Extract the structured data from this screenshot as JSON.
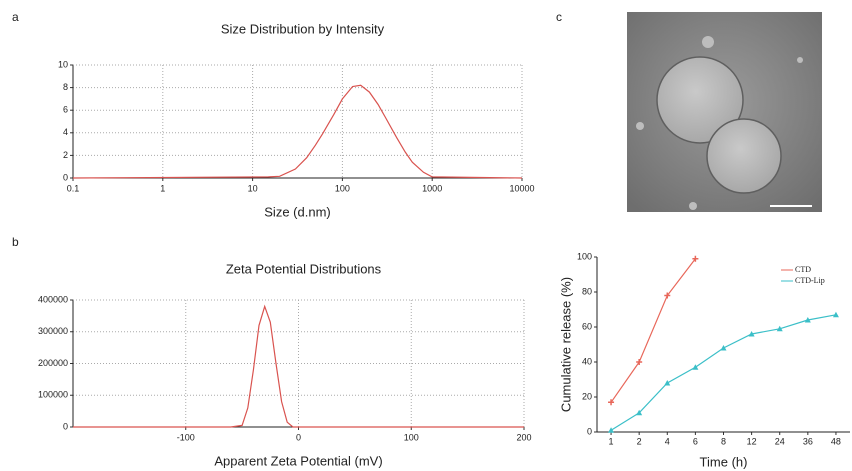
{
  "chart_data": [
    {
      "type": "line",
      "panel": "a",
      "title": "Size Distribution by Intensity",
      "x_label": "Size (d.nm)",
      "x": [
        0.1,
        15,
        20,
        30,
        40,
        50,
        60,
        80,
        100,
        130,
        160,
        200,
        250,
        300,
        400,
        500,
        600,
        800,
        1000,
        10000
      ],
      "series": [
        {
          "color": "#d9534f",
          "values": [
            0,
            0.1,
            0.15,
            0.8,
            1.8,
            2.9,
            3.9,
            5.6,
            7.0,
            8.1,
            8.2,
            7.6,
            6.5,
            5.4,
            3.6,
            2.3,
            1.4,
            0.5,
            0.1,
            0
          ]
        }
      ],
      "xscale": "log",
      "xlim": [
        0.1,
        10000
      ],
      "xticks": [
        0.1,
        1,
        10,
        100,
        1000,
        10000
      ],
      "ylim": [
        0,
        10
      ],
      "yticks": [
        0,
        2,
        4,
        6,
        8,
        10
      ],
      "grid": true
    },
    {
      "type": "line",
      "panel": "b",
      "title": "Zeta Potential Distributions",
      "x_label": "Apparent Zeta Potential (mV)",
      "x": [
        -200,
        -60,
        -50,
        -45,
        -40,
        -35,
        -30,
        -25,
        -20,
        -15,
        -10,
        -5,
        200
      ],
      "series": [
        {
          "color": "#d9534f",
          "values": [
            0,
            0,
            5000,
            60000,
            180000,
            320000,
            380000,
            330000,
            200000,
            80000,
            15000,
            0,
            0
          ]
        }
      ],
      "xscale": "linear",
      "xlim": [
        -200,
        200
      ],
      "xticks": [
        -100,
        0,
        100,
        200
      ],
      "ylim": [
        0,
        400000
      ],
      "yticks": [
        0,
        100000,
        200000,
        300000,
        400000
      ],
      "grid": true
    },
    {
      "type": "line",
      "x_label": "Time (h)",
      "y_label": "Cumulative release (%)",
      "categories": [
        "1",
        "2",
        "4",
        "6",
        "8",
        "12",
        "24",
        "36",
        "48"
      ],
      "series": [
        {
          "name": "CTD",
          "color": "#e8675a",
          "marker": "plus",
          "values": [
            17,
            40,
            78,
            99,
            null,
            null,
            null,
            null,
            null
          ]
        },
        {
          "name": "CTD-Lip",
          "color": "#3bbfc8",
          "marker": "triangle",
          "values": [
            1,
            11,
            28,
            37,
            48,
            56,
            59,
            64,
            67
          ]
        }
      ],
      "ylim": [
        0,
        100
      ],
      "yticks": [
        0,
        20,
        40,
        60,
        80,
        100
      ],
      "grid": false,
      "legend": "upper right"
    }
  ],
  "image_panel": {
    "label": "c"
  }
}
